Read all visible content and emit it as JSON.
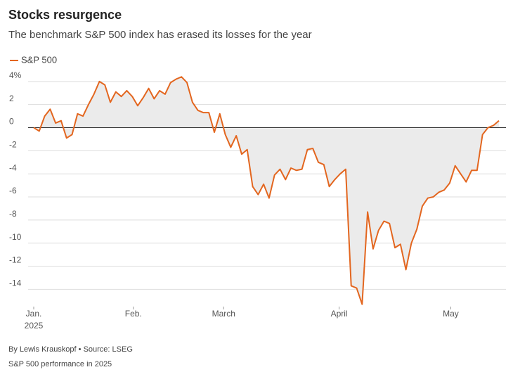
{
  "chart_data": {
    "type": "line",
    "title": "Stocks resurgence",
    "subtitle": "The benchmark S&P 500 index has erased its losses for the year",
    "source": "By Lewis Krauskopf • Source: LSEG",
    "caption": "S&P 500 performance in 2025",
    "year_label": "2025",
    "series": [
      {
        "name": "S&P 500",
        "color": "#e3661f",
        "values": [
          0,
          -0.3,
          1.0,
          1.6,
          0.4,
          0.6,
          -0.9,
          -0.6,
          1.2,
          1.0,
          2.0,
          2.9,
          4.0,
          3.7,
          2.2,
          3.1,
          2.7,
          3.2,
          2.7,
          1.9,
          2.6,
          3.4,
          2.5,
          3.2,
          2.9,
          3.9,
          4.2,
          4.4,
          3.9,
          2.2,
          1.5,
          1.3,
          1.3,
          -0.4,
          1.2,
          -0.6,
          -1.7,
          -0.7,
          -2.3,
          -1.9,
          -5.1,
          -5.8,
          -4.9,
          -6.1,
          -4.1,
          -3.6,
          -4.5,
          -3.5,
          -3.7,
          -3.6,
          -1.9,
          -1.8,
          -3.0,
          -3.2,
          -5.1,
          -4.5,
          -4.0,
          -3.6,
          -13.7,
          -13.9,
          -15.3,
          -7.3,
          -10.5,
          -8.9,
          -8.1,
          -8.3,
          -10.4,
          -10.1,
          -12.3,
          -10.0,
          -8.8,
          -6.8,
          -6.1,
          -6.0,
          -5.6,
          -5.4,
          -4.8,
          -3.3,
          -4.0,
          -4.7,
          -3.7,
          -3.7,
          -0.6,
          0.0,
          0.2,
          0.6
        ]
      }
    ],
    "xlim": [
      0,
      85
    ],
    "xticks": [
      {
        "value": 0,
        "label": "Jan."
      },
      {
        "value": 18.2,
        "label": "Feb."
      },
      {
        "value": 34.7,
        "label": "March"
      },
      {
        "value": 55.8,
        "label": "April"
      },
      {
        "value": 76.2,
        "label": "May"
      }
    ],
    "ylim": [
      -15.5,
      4.6
    ],
    "yticks": [
      {
        "value": 4,
        "label": "4%"
      },
      2,
      0,
      -2,
      -4,
      -6,
      -8,
      -10,
      -12,
      -14
    ],
    "grid": true,
    "area_fill": "#ebebeb"
  }
}
